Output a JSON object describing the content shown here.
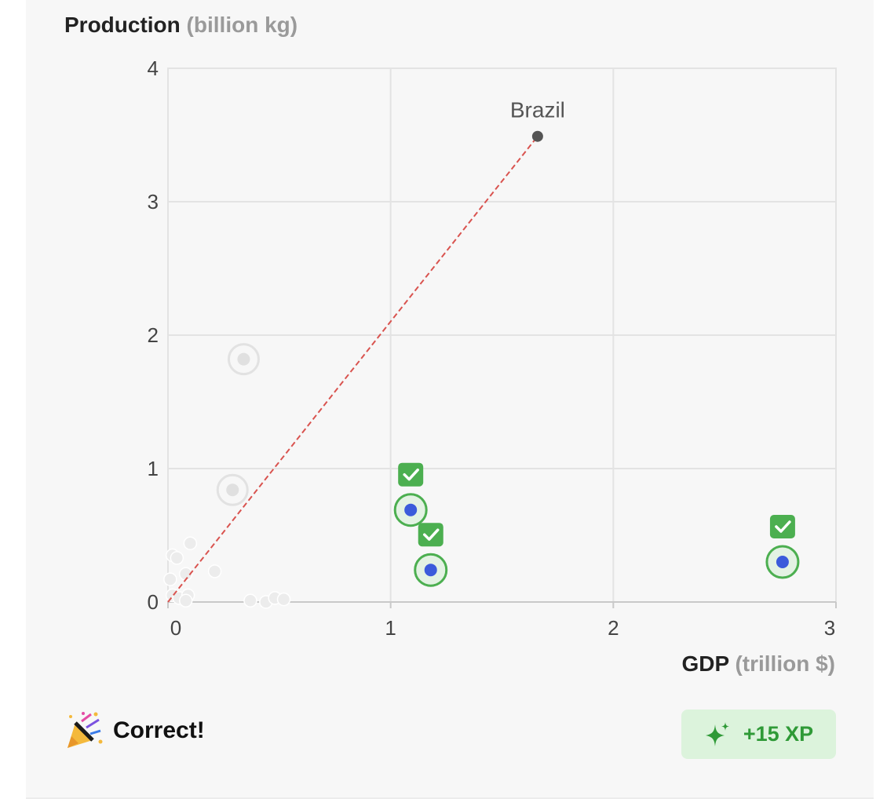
{
  "y_axis": {
    "title": "Production",
    "unit": "(billion kg)"
  },
  "x_axis": {
    "title": "GDP",
    "unit": "(trillion $)"
  },
  "result": {
    "text": "Correct!",
    "xp": "+15 XP"
  },
  "icons": {
    "celebration": "party-popper-icon",
    "sparkle": "sparkle-icon",
    "check": "check-icon"
  },
  "colors": {
    "accent_green": "#4caf50",
    "point_blue": "#3b5bdb",
    "line_red": "#d9534f",
    "xp_bg": "#dcf3dc"
  },
  "chart_data": {
    "type": "scatter",
    "xlabel": "GDP (trillion $)",
    "ylabel": "Production (billion kg)",
    "xlim": [
      0,
      3
    ],
    "ylim": [
      0,
      4
    ],
    "xticks": [
      0,
      1,
      2,
      3
    ],
    "yticks": [
      0,
      1,
      2,
      3,
      4
    ],
    "grid": true,
    "reference": {
      "name": "Brazil",
      "x": 1.66,
      "y": 3.49
    },
    "correct_points": [
      {
        "x": 1.09,
        "y": 0.69
      },
      {
        "x": 1.18,
        "y": 0.24
      },
      {
        "x": 2.76,
        "y": 0.3
      }
    ],
    "faded_selected_points": [
      {
        "x": 0.34,
        "y": 1.82
      },
      {
        "x": 0.29,
        "y": 0.84
      }
    ],
    "background_points": [
      {
        "x": 0.02,
        "y": 0.35
      },
      {
        "x": 0.04,
        "y": 0.33
      },
      {
        "x": 0.1,
        "y": 0.44
      },
      {
        "x": 0.01,
        "y": 0.17
      },
      {
        "x": 0.08,
        "y": 0.21
      },
      {
        "x": 0.21,
        "y": 0.23
      },
      {
        "x": 0.02,
        "y": 0.05
      },
      {
        "x": 0.05,
        "y": 0.03
      },
      {
        "x": 0.09,
        "y": 0.05
      },
      {
        "x": 0.08,
        "y": 0.01
      },
      {
        "x": 0.37,
        "y": 0.01
      },
      {
        "x": 0.44,
        "y": 0.0
      },
      {
        "x": 0.48,
        "y": 0.03
      },
      {
        "x": 0.52,
        "y": 0.02
      }
    ]
  }
}
